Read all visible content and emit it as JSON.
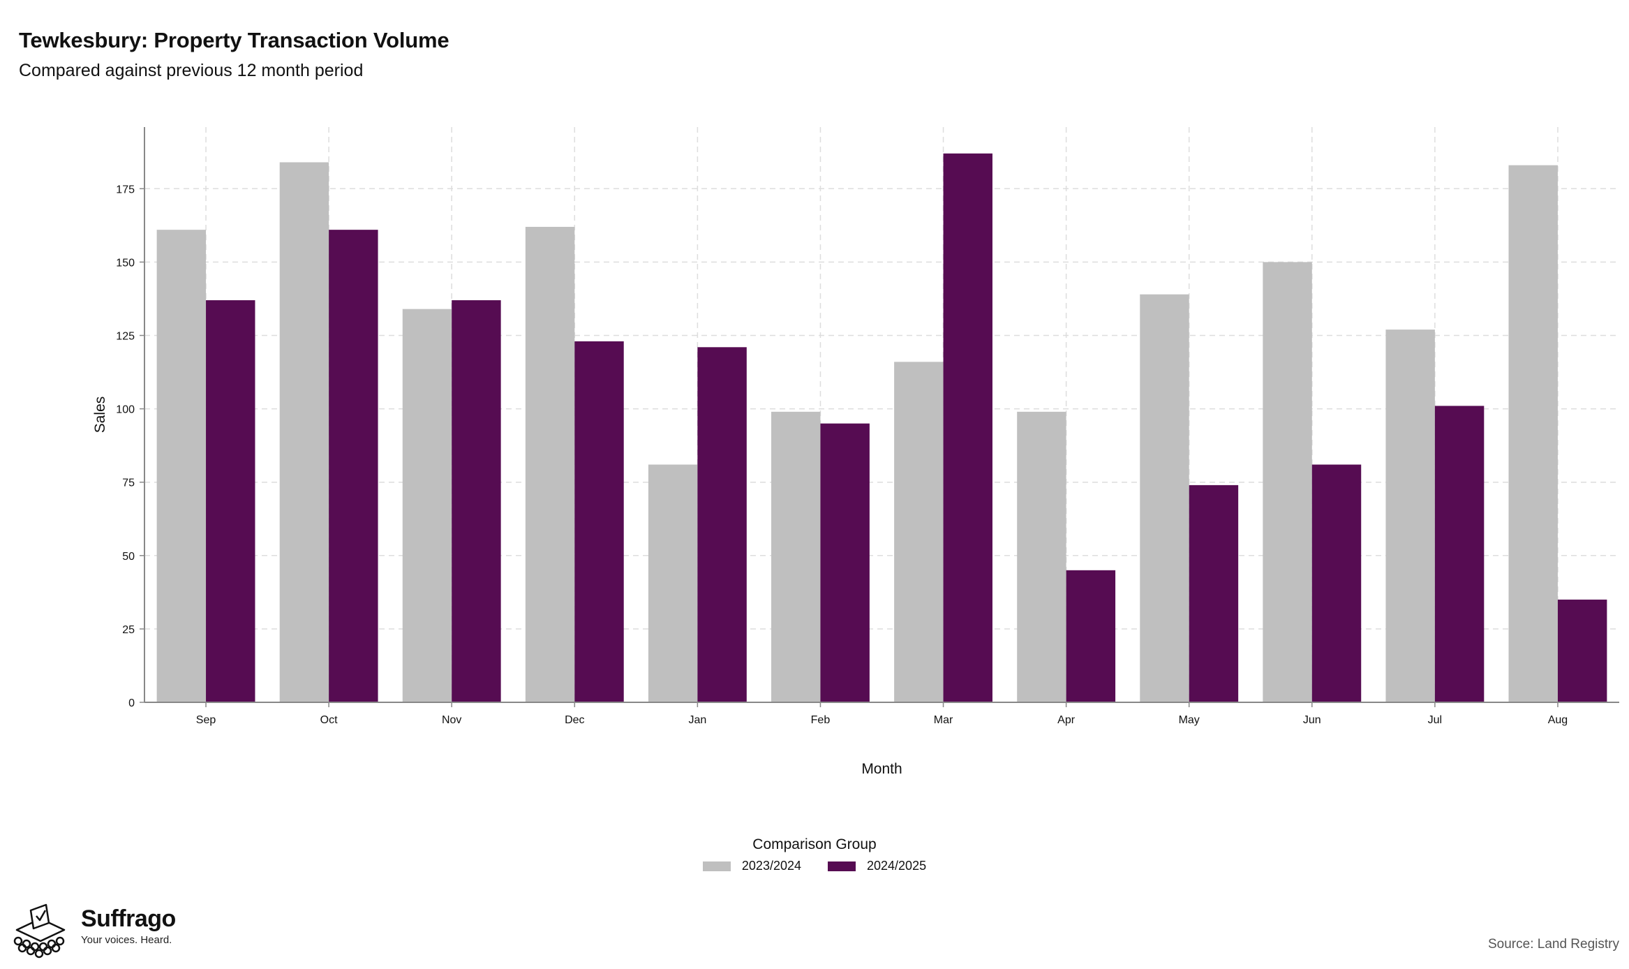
{
  "header": {
    "title": "Tewkesbury: Property Transaction Volume",
    "subtitle": "Compared against previous 12 month period"
  },
  "colors": {
    "series_2023": "#bfbfbf",
    "series_2024": "#560c52",
    "grid": "#dddddd",
    "axis": "#888888"
  },
  "chart_data": {
    "type": "bar",
    "categories": [
      "Sep",
      "Oct",
      "Nov",
      "Dec",
      "Jan",
      "Feb",
      "Mar",
      "Apr",
      "May",
      "Jun",
      "Jul",
      "Aug"
    ],
    "series": [
      {
        "name": "2023/2024",
        "values": [
          161,
          184,
          134,
          162,
          81,
          99,
          116,
          99,
          139,
          150,
          127,
          183
        ]
      },
      {
        "name": "2024/2025",
        "values": [
          137,
          161,
          137,
          123,
          121,
          95,
          187,
          45,
          74,
          81,
          101,
          35
        ]
      }
    ],
    "xlabel": "Month",
    "ylabel": "Sales",
    "ylim": [
      0,
      196
    ],
    "yticks": [
      0,
      25,
      50,
      75,
      100,
      125,
      150,
      175
    ],
    "grid": true,
    "legend": {
      "title": "Comparison Group",
      "position": "bottom"
    }
  },
  "footer": {
    "brand": "Suffrago",
    "tagline": "Your voices. Heard.",
    "source": "Source: Land Registry"
  }
}
